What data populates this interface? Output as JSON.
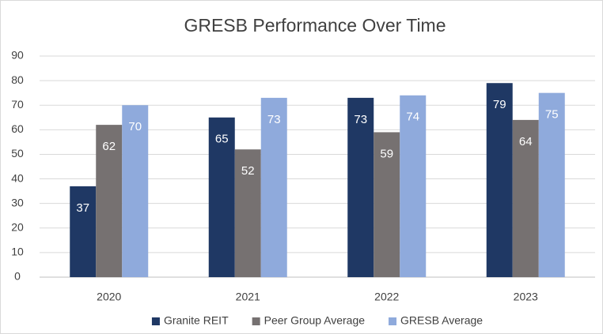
{
  "chart_data": {
    "type": "bar",
    "title": "GRESB Performance Over Time",
    "categories": [
      "2020",
      "2021",
      "2022",
      "2023"
    ],
    "series": [
      {
        "name": "Granite REIT",
        "color": "#1f3864",
        "values": [
          37,
          65,
          73,
          79
        ]
      },
      {
        "name": "Peer Group Average",
        "color": "#767171",
        "values": [
          62,
          52,
          59,
          64
        ]
      },
      {
        "name": "GRESB Average",
        "color": "#8faadc",
        "values": [
          70,
          73,
          74,
          75
        ]
      }
    ],
    "ylim": [
      0,
      90
    ],
    "yticks": [
      0,
      10,
      20,
      30,
      40,
      50,
      60,
      70,
      80,
      90
    ],
    "grid": true,
    "legend": "bottom",
    "data_labels": true
  }
}
